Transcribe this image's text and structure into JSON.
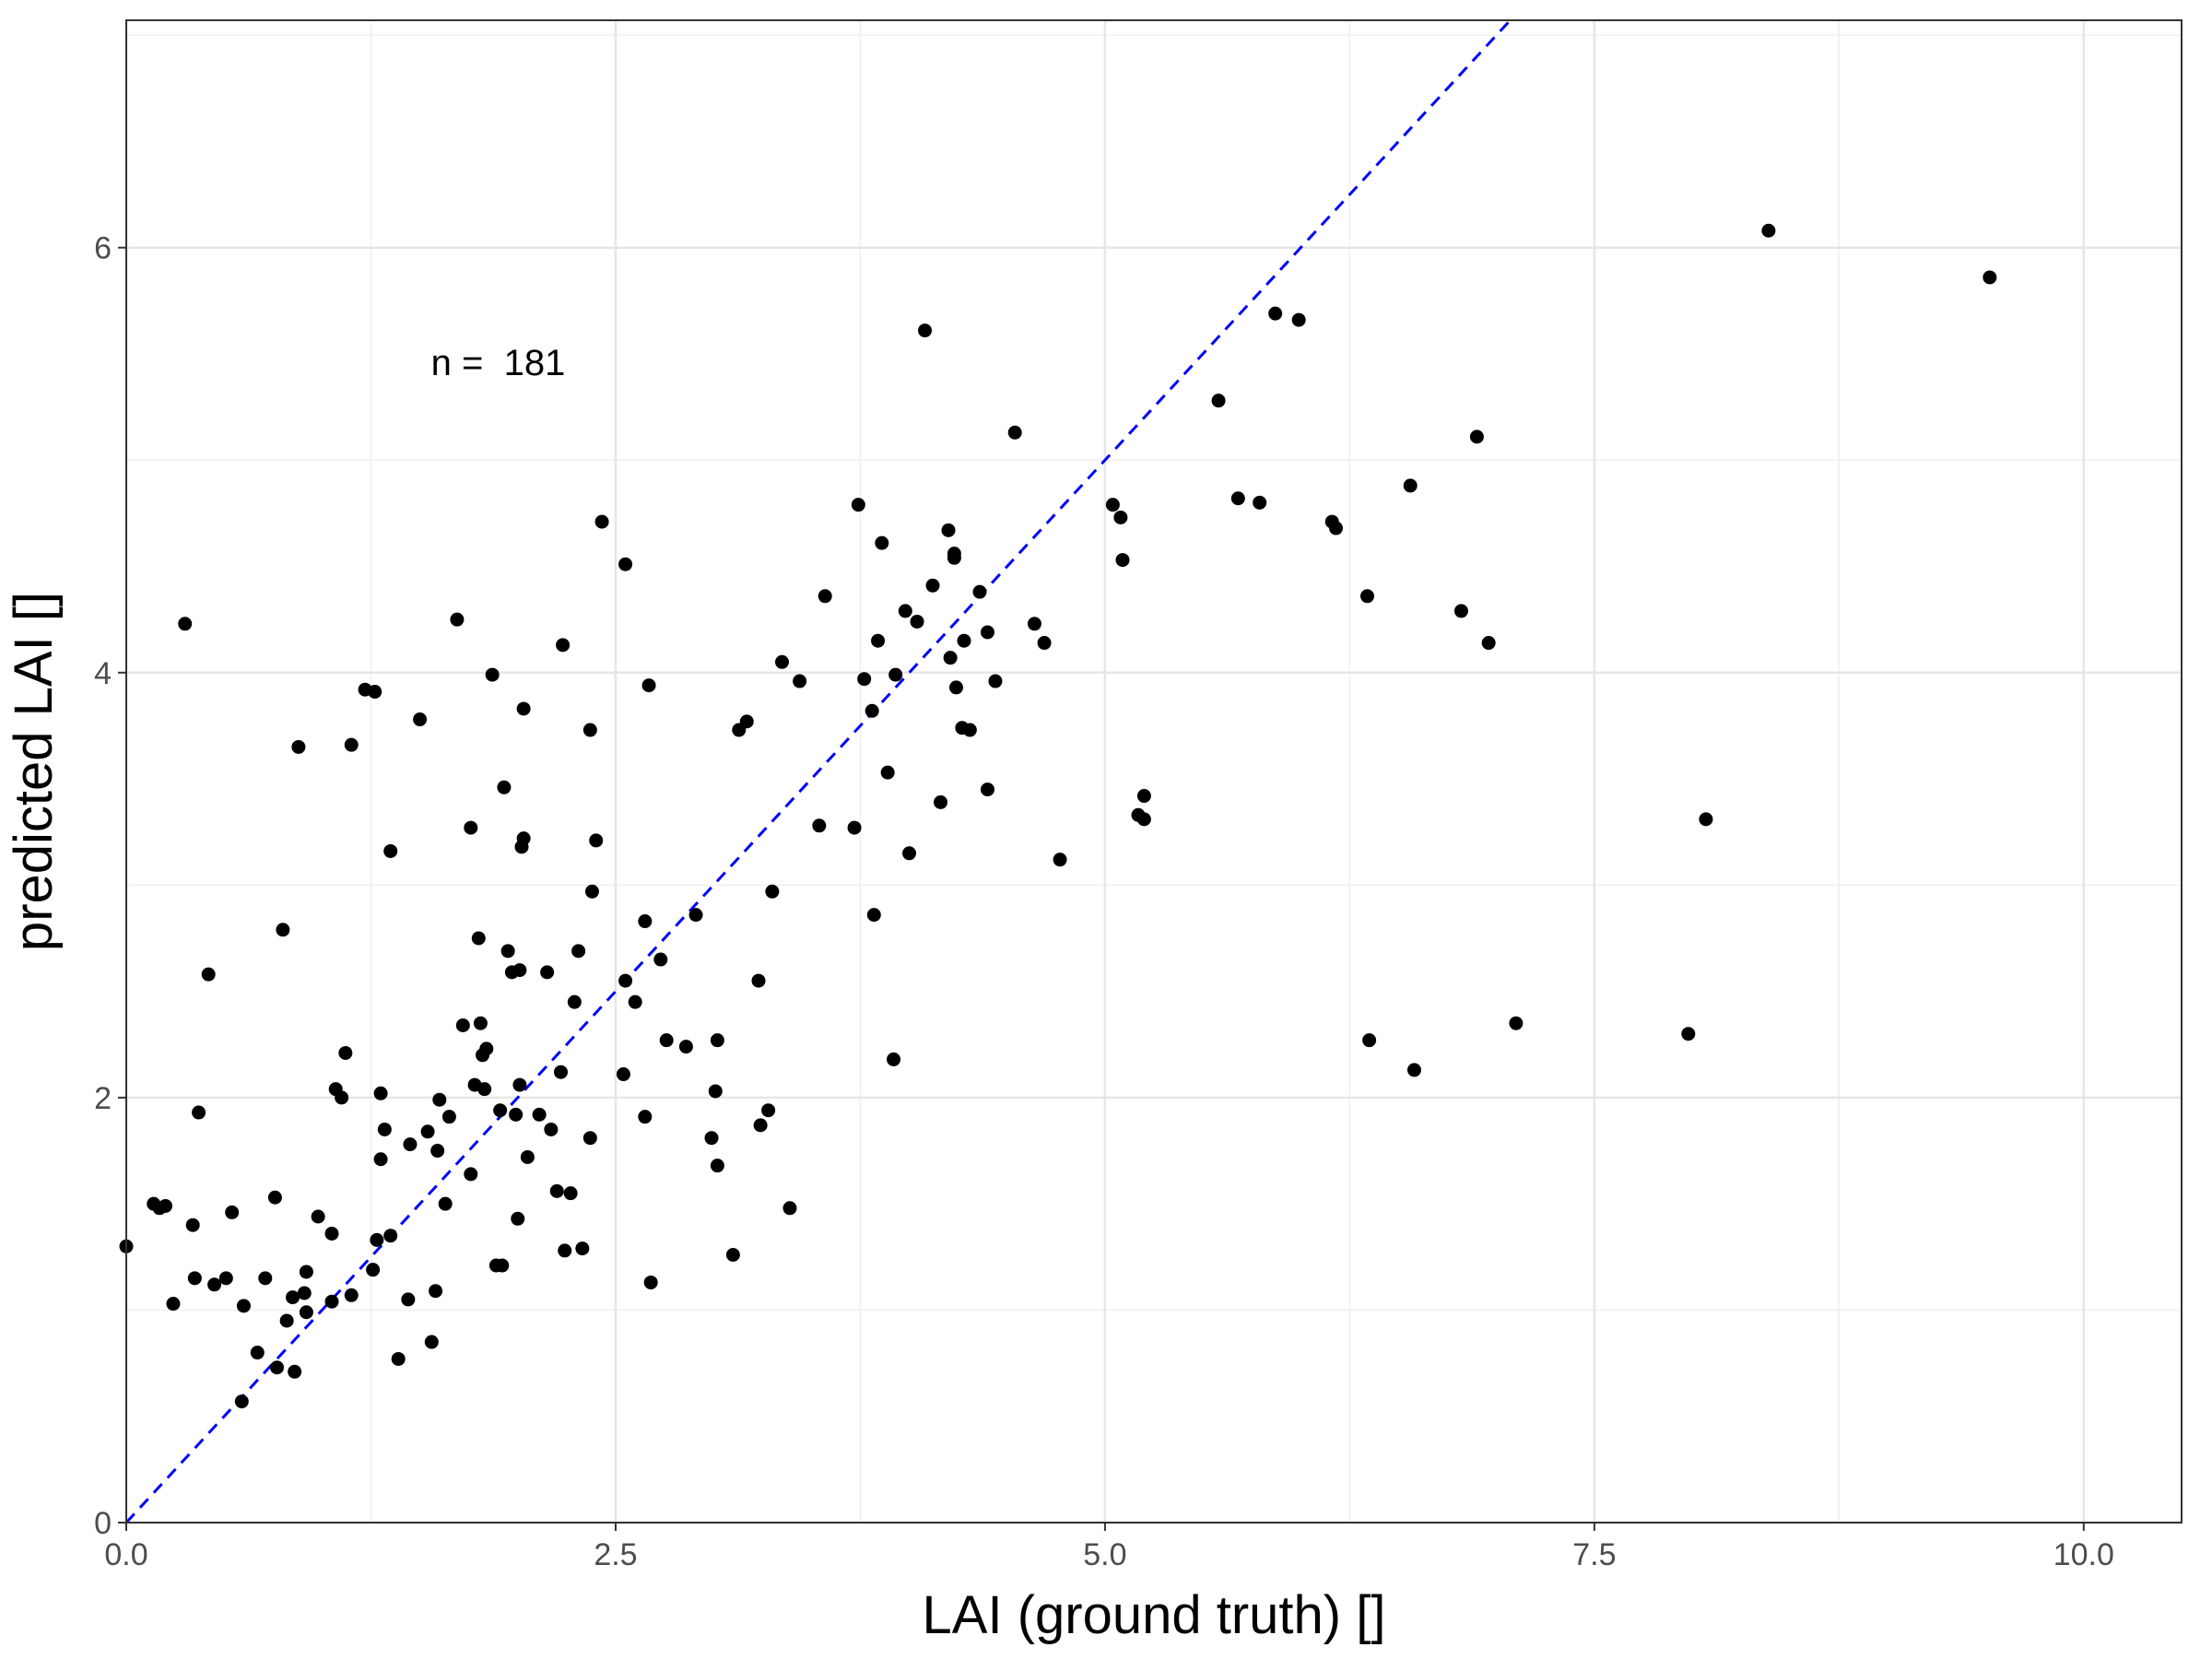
{
  "chart_data": {
    "type": "scatter",
    "title": "",
    "xlabel": "LAI (ground truth) []",
    "ylabel": "predicted LAI []",
    "xlim": [
      0,
      10.5
    ],
    "ylim": [
      0,
      7.07
    ],
    "x_ticks": [
      0,
      2.5,
      5,
      7.5,
      10
    ],
    "x_tick_labels": [
      "0.0",
      "2.5",
      "5.0",
      "7.5",
      "10.0"
    ],
    "y_ticks": [
      0,
      2,
      4,
      6
    ],
    "y_tick_labels": [
      "0",
      "2",
      "4",
      "6"
    ],
    "x_minor_ticks": [
      1.25,
      3.75,
      6.25,
      8.75
    ],
    "y_minor_ticks": [
      1,
      3,
      5,
      7
    ],
    "grid": true,
    "legend": "none",
    "annotation": {
      "text": "n =  181",
      "x": 1.9,
      "y": 5.46
    },
    "reference_line": {
      "type": "identity",
      "slope": 1,
      "intercept": 0,
      "style": "dashed",
      "color": "#0000ff"
    },
    "point_color": "#000000",
    "points": [
      [
        0.0,
        1.3
      ],
      [
        0.14,
        1.5
      ],
      [
        0.17,
        1.48
      ],
      [
        0.2,
        1.49
      ],
      [
        0.24,
        1.03
      ],
      [
        0.3,
        4.23
      ],
      [
        0.34,
        1.4
      ],
      [
        0.35,
        1.15
      ],
      [
        0.37,
        1.93
      ],
      [
        0.42,
        2.58
      ],
      [
        0.45,
        1.12
      ],
      [
        0.51,
        1.15
      ],
      [
        0.54,
        1.46
      ],
      [
        0.59,
        0.57
      ],
      [
        0.6,
        1.02
      ],
      [
        0.67,
        0.8
      ],
      [
        0.71,
        1.15
      ],
      [
        0.76,
        1.53
      ],
      [
        0.77,
        0.73
      ],
      [
        0.8,
        2.79
      ],
      [
        0.82,
        0.95
      ],
      [
        0.85,
        1.06
      ],
      [
        0.86,
        0.71
      ],
      [
        0.88,
        3.65
      ],
      [
        0.91,
        1.08
      ],
      [
        0.92,
        0.99
      ],
      [
        0.92,
        1.18
      ],
      [
        0.98,
        1.44
      ],
      [
        1.05,
        1.04
      ],
      [
        1.05,
        1.36
      ],
      [
        1.07,
        2.04
      ],
      [
        1.1,
        2.0
      ],
      [
        1.12,
        2.21
      ],
      [
        1.15,
        1.07
      ],
      [
        1.15,
        3.66
      ],
      [
        1.22,
        3.92
      ],
      [
        1.26,
        1.19
      ],
      [
        1.27,
        3.91
      ],
      [
        1.28,
        1.33
      ],
      [
        1.3,
        1.71
      ],
      [
        1.3,
        2.02
      ],
      [
        1.32,
        1.85
      ],
      [
        1.35,
        1.35
      ],
      [
        1.35,
        3.16
      ],
      [
        1.39,
        0.77
      ],
      [
        1.44,
        1.05
      ],
      [
        1.45,
        1.78
      ],
      [
        1.5,
        3.78
      ],
      [
        1.54,
        1.84
      ],
      [
        1.56,
        0.85
      ],
      [
        1.58,
        1.09
      ],
      [
        1.59,
        1.75
      ],
      [
        1.6,
        1.99
      ],
      [
        1.63,
        1.5
      ],
      [
        1.65,
        1.91
      ],
      [
        1.69,
        4.25
      ],
      [
        1.72,
        2.34
      ],
      [
        1.76,
        1.64
      ],
      [
        1.76,
        3.27
      ],
      [
        1.78,
        2.06
      ],
      [
        1.8,
        2.75
      ],
      [
        1.81,
        2.35
      ],
      [
        1.82,
        2.2
      ],
      [
        1.83,
        2.04
      ],
      [
        1.84,
        2.23
      ],
      [
        1.87,
        3.99
      ],
      [
        1.89,
        1.21
      ],
      [
        1.91,
        1.94
      ],
      [
        1.92,
        1.21
      ],
      [
        1.93,
        3.46
      ],
      [
        1.95,
        2.69
      ],
      [
        1.97,
        2.59
      ],
      [
        1.99,
        1.92
      ],
      [
        2.0,
        1.43
      ],
      [
        2.01,
        2.6
      ],
      [
        2.01,
        2.06
      ],
      [
        2.02,
        3.18
      ],
      [
        2.03,
        3.83
      ],
      [
        2.03,
        3.22
      ],
      [
        2.05,
        1.72
      ],
      [
        2.11,
        1.92
      ],
      [
        2.15,
        2.59
      ],
      [
        2.17,
        1.85
      ],
      [
        2.2,
        1.56
      ],
      [
        2.22,
        2.12
      ],
      [
        2.23,
        4.13
      ],
      [
        2.24,
        1.28
      ],
      [
        2.27,
        1.55
      ],
      [
        2.29,
        2.45
      ],
      [
        2.31,
        2.69
      ],
      [
        2.33,
        1.29
      ],
      [
        2.37,
        3.73
      ],
      [
        2.37,
        1.81
      ],
      [
        2.38,
        2.97
      ],
      [
        2.4,
        3.21
      ],
      [
        2.43,
        4.71
      ],
      [
        2.54,
        2.11
      ],
      [
        2.55,
        4.51
      ],
      [
        2.55,
        2.55
      ],
      [
        2.6,
        2.45
      ],
      [
        2.65,
        2.83
      ],
      [
        2.65,
        1.91
      ],
      [
        2.67,
        3.94
      ],
      [
        2.68,
        1.13
      ],
      [
        2.73,
        2.65
      ],
      [
        2.76,
        2.27
      ],
      [
        2.86,
        2.24
      ],
      [
        2.91,
        2.86
      ],
      [
        2.99,
        1.81
      ],
      [
        3.01,
        2.03
      ],
      [
        3.02,
        2.27
      ],
      [
        3.02,
        1.68
      ],
      [
        3.1,
        1.26
      ],
      [
        3.13,
        3.73
      ],
      [
        3.17,
        3.77
      ],
      [
        3.23,
        2.55
      ],
      [
        3.24,
        1.87
      ],
      [
        3.28,
        1.94
      ],
      [
        3.3,
        2.97
      ],
      [
        3.35,
        4.05
      ],
      [
        3.39,
        1.48
      ],
      [
        3.44,
        3.96
      ],
      [
        3.54,
        3.28
      ],
      [
        3.57,
        4.36
      ],
      [
        3.72,
        3.27
      ],
      [
        3.74,
        4.79
      ],
      [
        3.77,
        3.97
      ],
      [
        3.81,
        3.82
      ],
      [
        3.82,
        2.86
      ],
      [
        3.84,
        4.15
      ],
      [
        3.86,
        4.61
      ],
      [
        3.89,
        3.53
      ],
      [
        3.92,
        2.18
      ],
      [
        3.93,
        3.99
      ],
      [
        3.98,
        4.29
      ],
      [
        4.0,
        3.15
      ],
      [
        4.04,
        4.24
      ],
      [
        4.08,
        5.61
      ],
      [
        4.12,
        4.41
      ],
      [
        4.16,
        3.39
      ],
      [
        4.2,
        4.67
      ],
      [
        4.21,
        4.07
      ],
      [
        4.23,
        4.56
      ],
      [
        4.23,
        4.54
      ],
      [
        4.24,
        3.93
      ],
      [
        4.27,
        3.74
      ],
      [
        4.28,
        4.15
      ],
      [
        4.31,
        3.73
      ],
      [
        4.36,
        4.38
      ],
      [
        4.4,
        3.45
      ],
      [
        4.4,
        4.19
      ],
      [
        4.44,
        3.96
      ],
      [
        4.54,
        5.13
      ],
      [
        4.64,
        4.23
      ],
      [
        4.69,
        4.14
      ],
      [
        4.77,
        3.12
      ],
      [
        5.04,
        4.79
      ],
      [
        5.08,
        4.73
      ],
      [
        5.09,
        4.53
      ],
      [
        5.17,
        3.33
      ],
      [
        5.2,
        3.42
      ],
      [
        5.2,
        3.31
      ],
      [
        5.58,
        5.28
      ],
      [
        5.68,
        4.82
      ],
      [
        5.79,
        4.8
      ],
      [
        5.87,
        5.69
      ],
      [
        5.99,
        5.66
      ],
      [
        6.16,
        4.71
      ],
      [
        6.18,
        4.68
      ],
      [
        6.34,
        4.36
      ],
      [
        6.35,
        2.27
      ],
      [
        6.56,
        4.88
      ],
      [
        6.58,
        2.13
      ],
      [
        6.82,
        4.29
      ],
      [
        6.9,
        5.11
      ],
      [
        6.96,
        4.14
      ],
      [
        7.1,
        2.35
      ],
      [
        7.98,
        2.3
      ],
      [
        8.07,
        3.31
      ],
      [
        8.39,
        6.08
      ],
      [
        9.52,
        5.86
      ]
    ]
  }
}
